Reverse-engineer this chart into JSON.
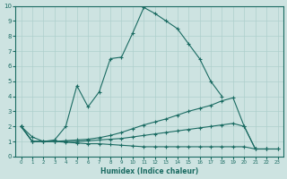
{
  "xlabel": "Humidex (Indice chaleur)",
  "ylabel": "",
  "xlim": [
    -0.5,
    23.5
  ],
  "ylim": [
    0,
    10
  ],
  "xticks": [
    0,
    1,
    2,
    3,
    4,
    5,
    6,
    7,
    8,
    9,
    10,
    11,
    12,
    13,
    14,
    15,
    16,
    17,
    18,
    19,
    20,
    21,
    22,
    23
  ],
  "yticks": [
    0,
    1,
    2,
    3,
    4,
    5,
    6,
    7,
    8,
    9,
    10
  ],
  "bg_color": "#cde3e1",
  "grid_color": "#aecfcc",
  "line_color": "#1a6b62",
  "line1_x": [
    0,
    1,
    2,
    3,
    4,
    5,
    6,
    7,
    8,
    9,
    10,
    11,
    12,
    13,
    14,
    15,
    16,
    17,
    18
  ],
  "line1_y": [
    2.0,
    1.3,
    1.0,
    1.1,
    2.0,
    4.7,
    3.3,
    4.3,
    6.5,
    6.6,
    8.2,
    9.9,
    9.5,
    9.0,
    8.5,
    7.5,
    6.5,
    5.0,
    4.0
  ],
  "line2_x": [
    0,
    1,
    2,
    3,
    4,
    5,
    6,
    7,
    8,
    9,
    10,
    11,
    12,
    13,
    14,
    15,
    16,
    17,
    18,
    19,
    20,
    21,
    22
  ],
  "line2_y": [
    2.0,
    1.0,
    1.0,
    1.0,
    1.05,
    1.1,
    1.15,
    1.25,
    1.4,
    1.6,
    1.85,
    2.1,
    2.3,
    2.5,
    2.75,
    3.0,
    3.2,
    3.4,
    3.7,
    3.9,
    2.0,
    0.5,
    0.5
  ],
  "line3_x": [
    0,
    1,
    2,
    3,
    4,
    5,
    6,
    7,
    8,
    9,
    10,
    11,
    12,
    13,
    14,
    15,
    16,
    17,
    18,
    19,
    20,
    21,
    22,
    23
  ],
  "line3_y": [
    2.0,
    1.0,
    1.0,
    1.0,
    1.0,
    1.0,
    1.05,
    1.1,
    1.15,
    1.2,
    1.3,
    1.4,
    1.5,
    1.6,
    1.7,
    1.8,
    1.9,
    2.0,
    2.1,
    2.2,
    2.0,
    0.5,
    0.5,
    0.5
  ],
  "line4_x": [
    0,
    1,
    2,
    3,
    4,
    5,
    6,
    7,
    8,
    9,
    10,
    11,
    12,
    13,
    14,
    15,
    16,
    17,
    18,
    19,
    20,
    21,
    22,
    23
  ],
  "line4_y": [
    2.0,
    1.0,
    1.0,
    1.0,
    0.95,
    0.9,
    0.85,
    0.85,
    0.8,
    0.75,
    0.7,
    0.65,
    0.65,
    0.65,
    0.65,
    0.65,
    0.65,
    0.65,
    0.65,
    0.65,
    0.65,
    0.5,
    0.5,
    0.5
  ]
}
